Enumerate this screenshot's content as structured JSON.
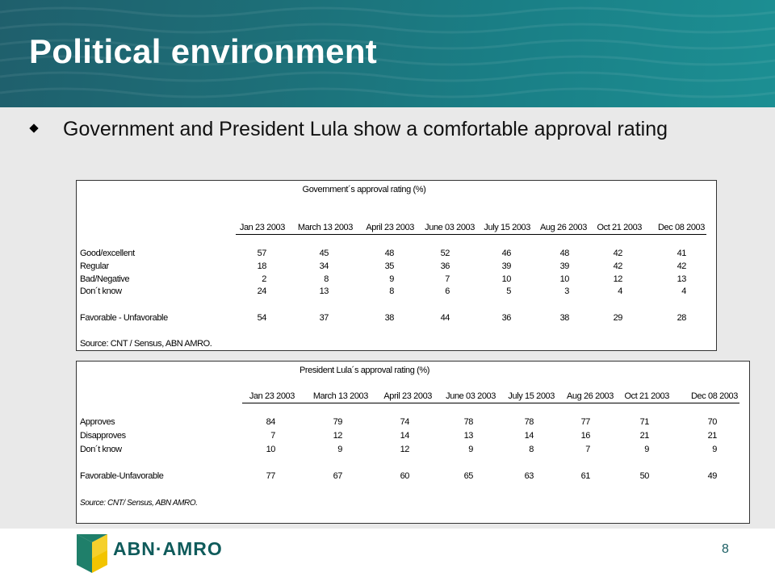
{
  "slide": {
    "title": "Political environment",
    "bullet": "Government and President Lula show a comfortable approval rating",
    "page_number": "8"
  },
  "logo": {
    "text": "ABN·AMRO",
    "colors": {
      "teal": "#0f5b5b",
      "yellow": "#f2c400",
      "green": "#1f7f6a"
    }
  },
  "colors": {
    "header": "#1d6f78",
    "background": "#e9e9e9"
  },
  "tables": [
    {
      "title": "Government´s approval rating (%)",
      "columns": [
        "Jan 23 2003",
        "March 13 2003",
        "April 23 2003",
        "June 03 2003",
        "July 15 2003",
        "Aug 26 2003",
        "Oct 21 2003",
        "Dec 08 2003"
      ],
      "rows": [
        {
          "label": "Good/excellent",
          "values": [
            "57",
            "45",
            "48",
            "52",
            "46",
            "48",
            "42",
            "41"
          ]
        },
        {
          "label": "Regular",
          "values": [
            "18",
            "34",
            "35",
            "36",
            "39",
            "39",
            "42",
            "42"
          ]
        },
        {
          "label": "Bad/Negative",
          "values": [
            "2",
            "8",
            "9",
            "7",
            "10",
            "10",
            "12",
            "13"
          ]
        },
        {
          "label": "Don´t know",
          "values": [
            "24",
            "13",
            "8",
            "6",
            "5",
            "3",
            "4",
            "4"
          ]
        },
        {
          "label": "Favorable - Unfavorable",
          "values": [
            "54",
            "37",
            "38",
            "44",
            "36",
            "38",
            "29",
            "28"
          ]
        }
      ],
      "source": "Source: CNT / Sensus, ABN AMRO."
    },
    {
      "title": "President Lula´s approval rating (%)",
      "columns": [
        "Jan 23 2003",
        "March 13 2003",
        "April 23 2003",
        "June 03 2003",
        "July 15 2003",
        "Aug 26 2003",
        "Oct 21 2003",
        "Dec 08 2003"
      ],
      "rows": [
        {
          "label": "Approves",
          "values": [
            "84",
            "79",
            "74",
            "78",
            "78",
            "77",
            "71",
            "70"
          ]
        },
        {
          "label": "Disapproves",
          "values": [
            "7",
            "12",
            "14",
            "13",
            "14",
            "16",
            "21",
            "21"
          ]
        },
        {
          "label": "Don´t know",
          "values": [
            "10",
            "9",
            "12",
            "9",
            "8",
            "7",
            "9",
            "9"
          ]
        },
        {
          "label": "Favorable-Unfavorable",
          "values": [
            "77",
            "67",
            "60",
            "65",
            "63",
            "61",
            "50",
            "49"
          ]
        }
      ],
      "source": "Source: CNT/ Sensus, ABN AMRO."
    }
  ]
}
